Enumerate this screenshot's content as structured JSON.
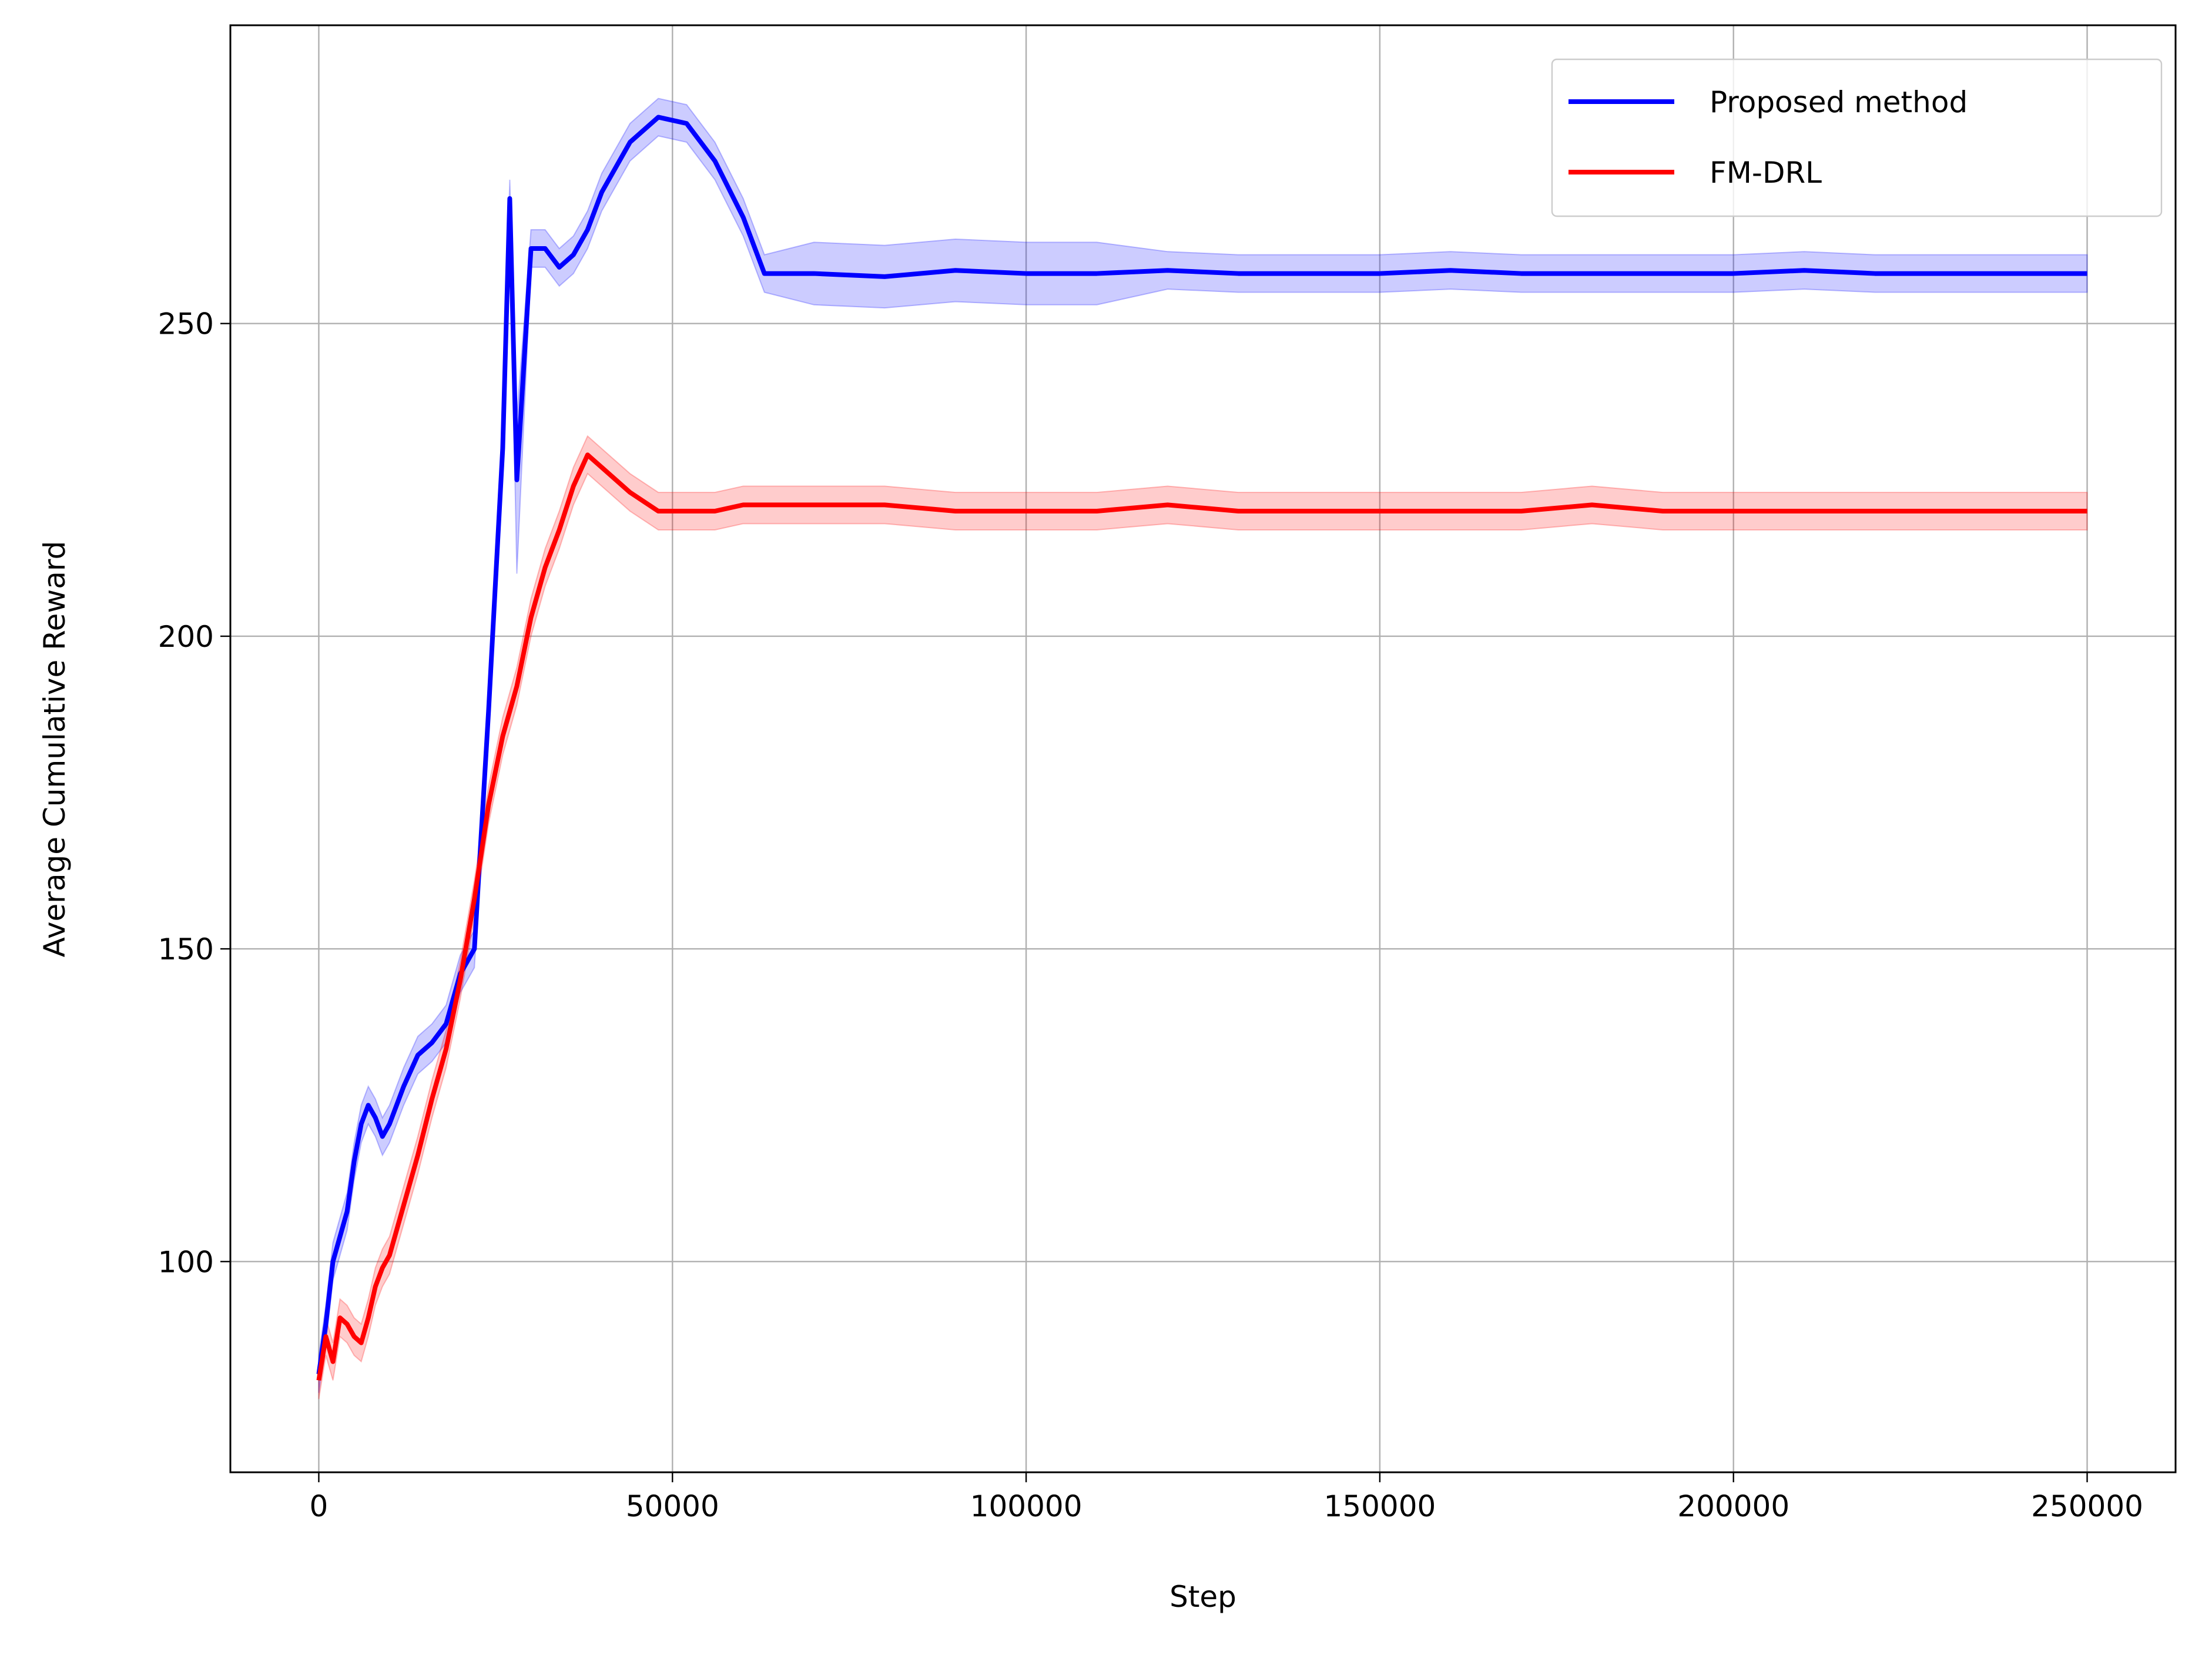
{
  "chart_data": {
    "type": "line",
    "xlabel": "Step",
    "ylabel": "Average Cumulative Reward",
    "x": [
      0,
      1000,
      2000,
      3000,
      4000,
      5000,
      6000,
      7000,
      8000,
      9000,
      10000,
      12000,
      14000,
      16000,
      18000,
      20000,
      22000,
      24000,
      26000,
      27000,
      28000,
      30000,
      32000,
      34000,
      36000,
      38000,
      40000,
      44000,
      48000,
      52000,
      56000,
      60000,
      63000,
      70000,
      80000,
      90000,
      100000,
      110000,
      120000,
      130000,
      140000,
      150000,
      160000,
      170000,
      180000,
      190000,
      200000,
      210000,
      220000,
      230000,
      240000,
      250000
    ],
    "series": [
      {
        "name": "Proposed method",
        "color": "#0000ff",
        "values": [
          82,
          90,
          100,
          104,
          108,
          116,
          122,
          125,
          123,
          120,
          122,
          128,
          133,
          135,
          138,
          146,
          150,
          188,
          230,
          270,
          225,
          262,
          262,
          259,
          261,
          265,
          271,
          279,
          283,
          282,
          276,
          267,
          258,
          258,
          257.5,
          258.5,
          258,
          258,
          258.5,
          258,
          258,
          258,
          258.5,
          258,
          258,
          258,
          258,
          258.5,
          258,
          258,
          258,
          258
        ],
        "lower": [
          79,
          87,
          97,
          101,
          105,
          113,
          119,
          122,
          120,
          117,
          119,
          125,
          130,
          132,
          135,
          143,
          147,
          185,
          227,
          267,
          210,
          259,
          259,
          256,
          258,
          262,
          268,
          276,
          280,
          279,
          273,
          264,
          255,
          253,
          252.5,
          253.5,
          253,
          253,
          255.5,
          255,
          255,
          255,
          255.5,
          255,
          255,
          255,
          255,
          255.5,
          255,
          255,
          255,
          255
        ],
        "upper": [
          85,
          93,
          103,
          107,
          111,
          119,
          125,
          128,
          126,
          123,
          125,
          131,
          136,
          138,
          141,
          149,
          153,
          191,
          233,
          273,
          235,
          265,
          265,
          262,
          264,
          268,
          274,
          282,
          286,
          285,
          279,
          270,
          261,
          263,
          262.5,
          263.5,
          263,
          263,
          261.5,
          261,
          261,
          261,
          261.5,
          261,
          261,
          261,
          261,
          261.5,
          261,
          261,
          261,
          261
        ]
      },
      {
        "name": "FM-DRL",
        "color": "#ff0000",
        "values": [
          81,
          88,
          84,
          91,
          90,
          88,
          87,
          91,
          96,
          99,
          101,
          109,
          117,
          126,
          134,
          145,
          158,
          173,
          184,
          188,
          192,
          203,
          211,
          217,
          224,
          229,
          227,
          223,
          220,
          220,
          220,
          221,
          221,
          221,
          221,
          220,
          220,
          220,
          221,
          220,
          220,
          220,
          220,
          220,
          221,
          220,
          220,
          220,
          220,
          220,
          220,
          220
        ],
        "lower": [
          78,
          85,
          81,
          88,
          87,
          85,
          84,
          88,
          93,
          96,
          98,
          106,
          114,
          123,
          131,
          142,
          155,
          170,
          181,
          185,
          189,
          200,
          208,
          214,
          221,
          226,
          224,
          220,
          217,
          217,
          217,
          218,
          218,
          218,
          218,
          217,
          217,
          217,
          218,
          217,
          217,
          217,
          217,
          217,
          218,
          217,
          217,
          217,
          217,
          217,
          217,
          217
        ],
        "upper": [
          84,
          91,
          87,
          94,
          93,
          91,
          90,
          94,
          99,
          102,
          104,
          112,
          120,
          129,
          137,
          148,
          161,
          176,
          187,
          191,
          195,
          206,
          214,
          220,
          227,
          232,
          230,
          226,
          223,
          223,
          223,
          224,
          224,
          224,
          224,
          223,
          223,
          223,
          224,
          223,
          223,
          223,
          223,
          223,
          224,
          223,
          223,
          223,
          223,
          223,
          223,
          223
        ]
      }
    ],
    "xlim": [
      -12500,
      262500
    ],
    "ylim": [
      66.3,
      297.7
    ],
    "xticks": [
      0,
      50000,
      100000,
      150000,
      200000,
      250000
    ],
    "yticks": [
      100,
      150,
      200,
      250
    ],
    "grid": true,
    "legend": "upper right"
  }
}
